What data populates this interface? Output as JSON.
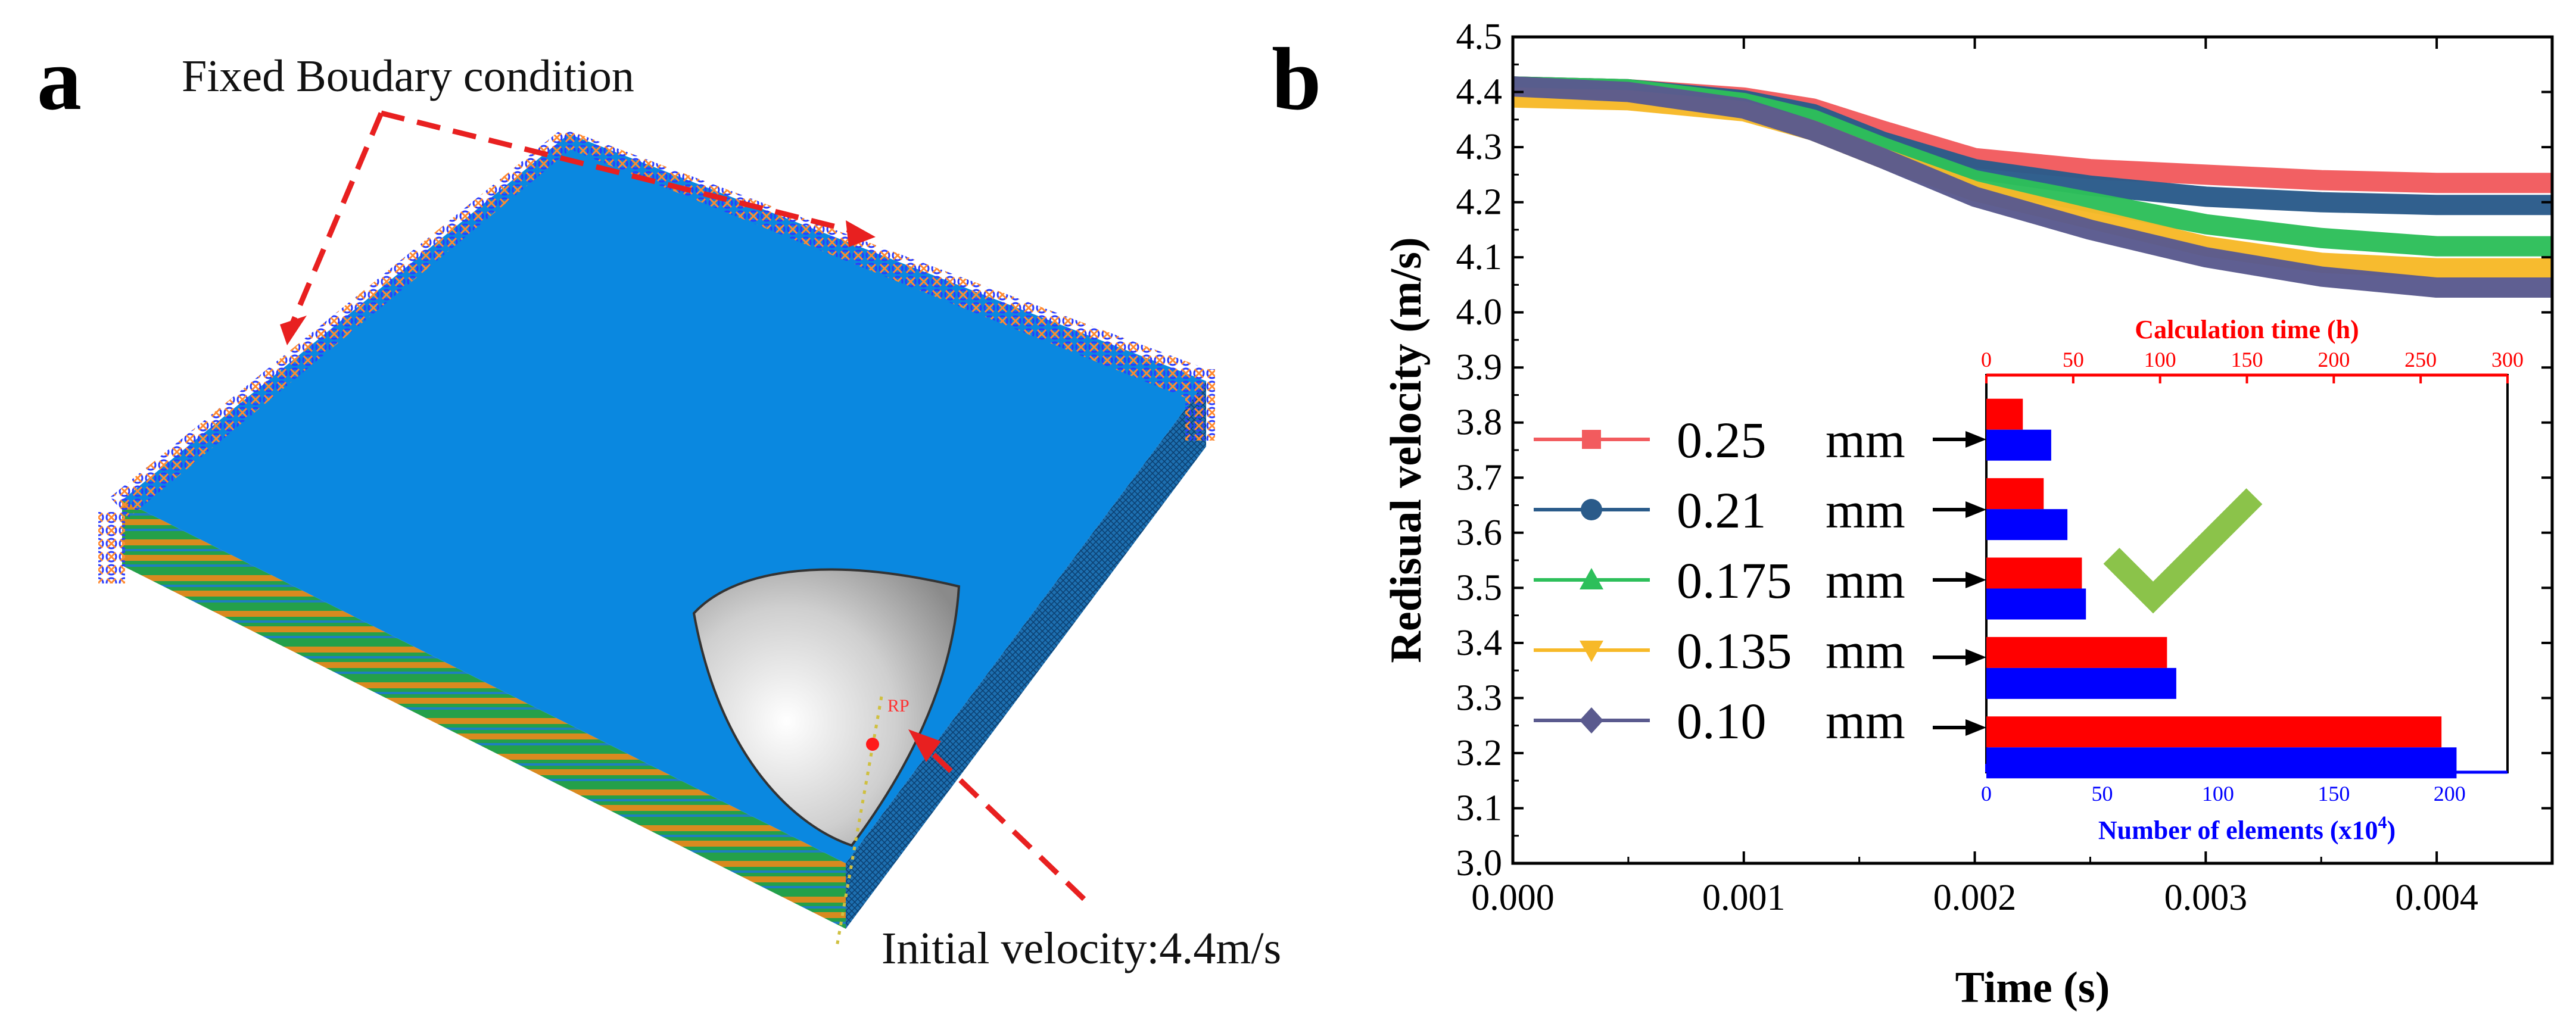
{
  "panel_a": {
    "letter": "a",
    "fixed_label": "Fixed Boudary condition",
    "velocity_label": "Initial velocity:4.4m/s",
    "rp_label": "RP"
  },
  "panel_b": {
    "letter": "b"
  },
  "chart_data": [
    {
      "type": "line",
      "xlabel": "Time (s)",
      "ylabel": "Redisual velocity (m/s)",
      "xlim": [
        0,
        0.0045
      ],
      "ylim": [
        3.0,
        4.5
      ],
      "xticks": [
        "0.000",
        "0.001",
        "0.002",
        "0.003",
        "0.004"
      ],
      "yticks": [
        "3.0",
        "3.1",
        "3.2",
        "3.3",
        "3.4",
        "3.5",
        "3.6",
        "3.7",
        "3.8",
        "3.9",
        "4.0",
        "4.1",
        "4.2",
        "4.3",
        "4.4",
        "4.5"
      ],
      "legend_position": "middle-left",
      "x": [
        0,
        0.0005,
        0.001,
        0.0013,
        0.0016,
        0.002,
        0.0025,
        0.003,
        0.0035,
        0.004,
        0.0045
      ],
      "series": [
        {
          "name": "0.25",
          "unit": "mm",
          "color": "#f25b5e",
          "marker": "square",
          "values": [
            4.41,
            4.405,
            4.39,
            4.37,
            4.33,
            4.28,
            4.26,
            4.25,
            4.24,
            4.235,
            4.235
          ]
        },
        {
          "name": "0.21",
          "unit": "mm",
          "color": "#2a5b8a",
          "marker": "circle",
          "values": [
            4.41,
            4.405,
            4.385,
            4.36,
            4.31,
            4.26,
            4.23,
            4.21,
            4.2,
            4.195,
            4.195
          ]
        },
        {
          "name": "0.175",
          "unit": "mm",
          "color": "#2dbf5a",
          "marker": "triangle-up",
          "values": [
            4.41,
            4.405,
            4.38,
            4.35,
            4.3,
            4.24,
            4.2,
            4.16,
            4.135,
            4.12,
            4.12
          ]
        },
        {
          "name": "0.135",
          "unit": "mm",
          "color": "#f7b928",
          "marker": "triangle-down",
          "values": [
            4.39,
            4.385,
            4.365,
            4.33,
            4.28,
            4.22,
            4.17,
            4.12,
            4.09,
            4.08,
            4.08
          ]
        },
        {
          "name": "0.10",
          "unit": "mm",
          "color": "#5a5a8e",
          "marker": "diamond",
          "values": [
            4.41,
            4.4,
            4.37,
            4.33,
            4.28,
            4.21,
            4.15,
            4.1,
            4.065,
            4.045,
            4.045
          ]
        }
      ]
    },
    {
      "type": "bar",
      "orientation": "horizontal",
      "categories": [
        "0.25",
        "0.21",
        "0.175",
        "0.135",
        "0.10"
      ],
      "top_axis": {
        "label": "Calculation time (h)",
        "range": [
          0,
          300
        ],
        "ticks": [
          "0",
          "50",
          "100",
          "150",
          "200",
          "250",
          "300"
        ],
        "color": "#ff0000"
      },
      "bottom_axis": {
        "label": "Number of elements (x10",
        "label_sup": "4",
        "label_end": ")",
        "range": [
          0,
          225
        ],
        "ticks": [
          "0",
          "50",
          "100",
          "150",
          "200"
        ],
        "color": "#0000ff"
      },
      "series": [
        {
          "name": "Calculation time",
          "axis": "top",
          "color": "#ff0000",
          "values": [
            21,
            33,
            55,
            104,
            262
          ]
        },
        {
          "name": "Number of elements",
          "axis": "bottom",
          "color": "#0000ff",
          "values": [
            28,
            35,
            43,
            82,
            203
          ]
        }
      ],
      "highlight": {
        "category": "0.175",
        "symbol": "check",
        "color": "#8bc34a"
      }
    }
  ]
}
